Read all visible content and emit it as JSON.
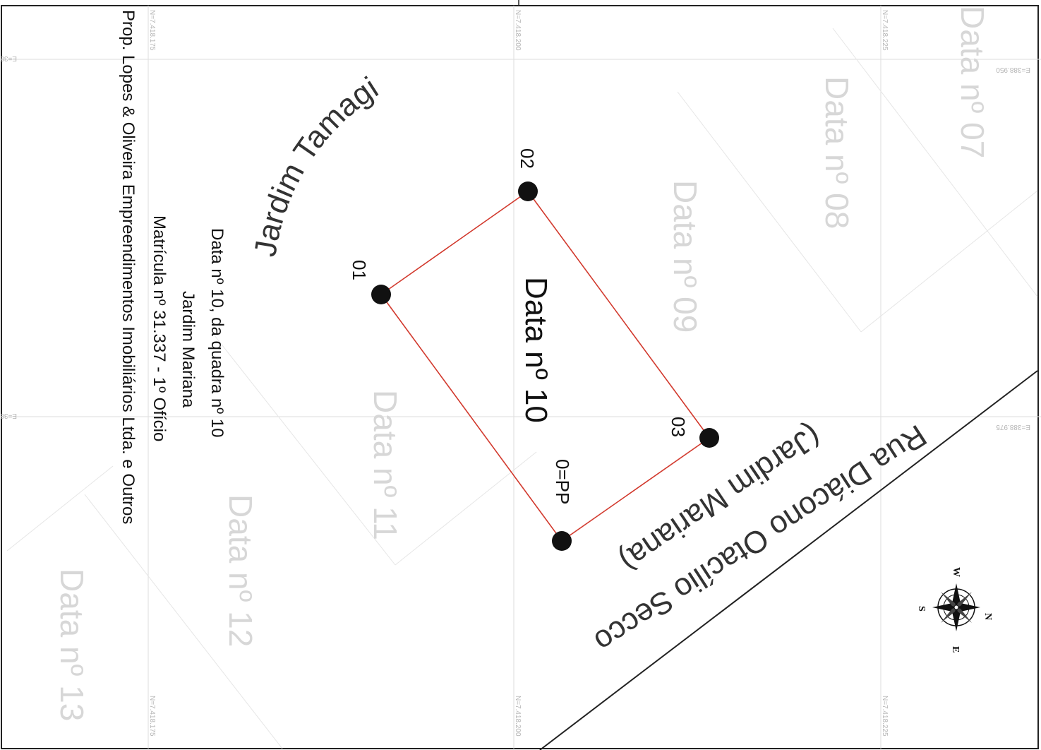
{
  "colors": {
    "frame": "#222222",
    "grid": "#dddddd",
    "ghost_text": "#d7d7d7",
    "parcel_outline": "#d23a2e",
    "vertex": "#111111",
    "road_line": "#222222"
  },
  "lot": {
    "title": "Data nº 10"
  },
  "vertices": [
    {
      "id": "v-pp",
      "label": "0=PP"
    },
    {
      "id": "v-01",
      "label": "01"
    },
    {
      "id": "v-02",
      "label": "02"
    },
    {
      "id": "v-03",
      "label": "03"
    }
  ],
  "streets": {
    "tamagi": "Jardim Tamagi",
    "diacono": "Rua Diácono Otacílio Secco",
    "mariana": "(Jardim Mariana)"
  },
  "neighbors": [
    "Data nº 07",
    "Data nº 08",
    "Data nº 09",
    "Data nº 11",
    "Data nº 12",
    "Data nº 13"
  ],
  "info_block": {
    "line1": "Data nº 10, da quadra nº 10",
    "line2": "Jardim Mariana",
    "line3": "Matrícula nº 31.337 - 1º Ofício",
    "line4": "Prop. Lopes & Oliveira Empreendimentos Imobiliários Ltda. e Outros"
  },
  "grid_labels": {
    "e_950": "E=388.950",
    "e_975": "E=388.975",
    "n_175": "N=7.418.175",
    "n_200": "N=7.418.200",
    "n_225": "N=7.418.225"
  },
  "compass": {
    "n": "N",
    "e": "E",
    "s": "S",
    "w": "W",
    "icon": "compass-rose-icon"
  }
}
